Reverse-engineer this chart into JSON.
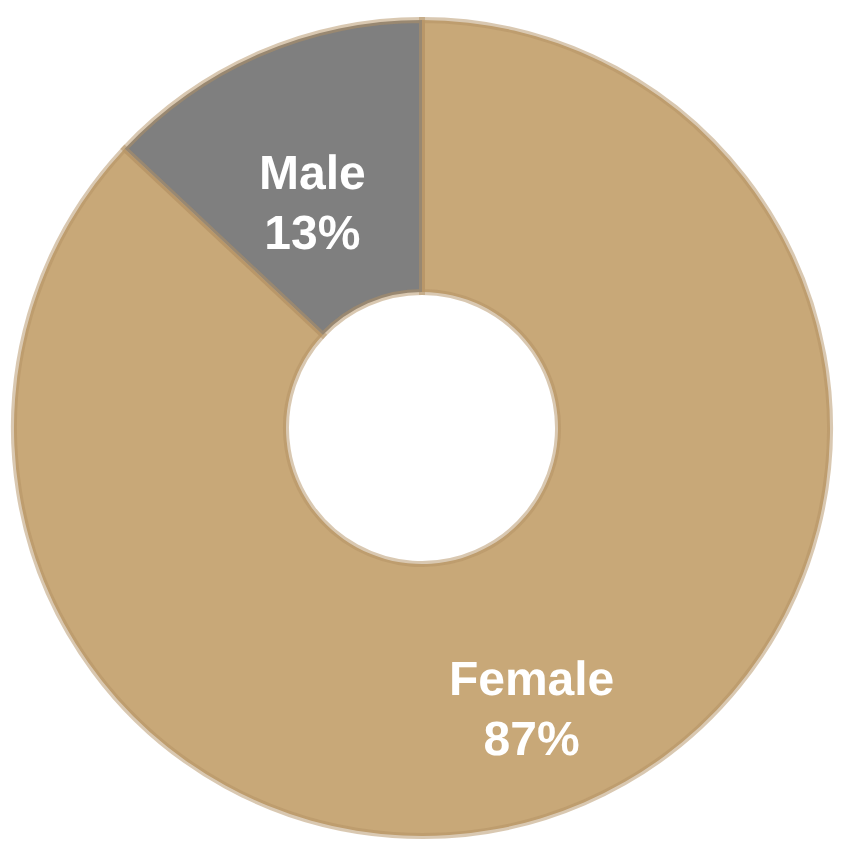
{
  "chart_data": {
    "type": "donut",
    "categories": [
      "Female",
      "Male"
    ],
    "values": [
      87,
      13
    ],
    "colors": [
      "#c8a878",
      "#7f7f7f"
    ],
    "value_labels": [
      "87%",
      "13%"
    ]
  }
}
